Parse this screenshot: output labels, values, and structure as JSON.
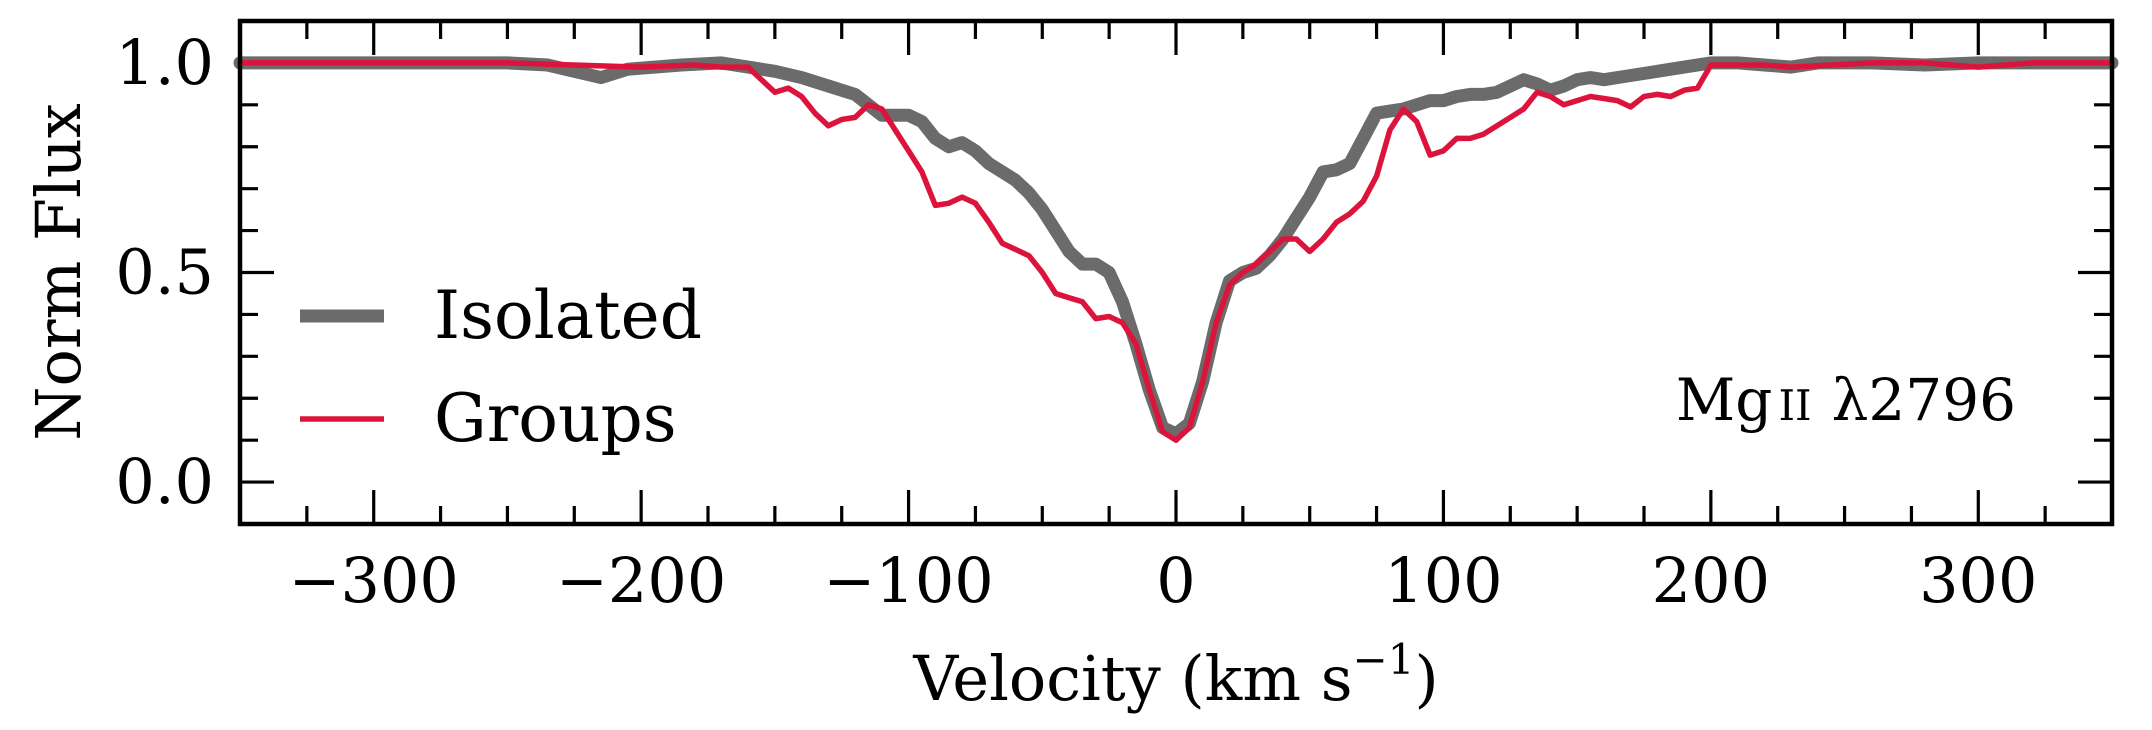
{
  "chart_data": {
    "type": "line",
    "xlabel": "Velocity (km s",
    "xlabel_sup": "−1",
    "xlabel_close": ")",
    "ylabel": "Norm Flux",
    "xlim": [
      -350,
      350
    ],
    "ylim": [
      -0.1,
      1.1
    ],
    "x_ticks_major": [
      -300,
      -200,
      -100,
      0,
      100,
      200,
      300
    ],
    "x_tick_labels": [
      "−300",
      "−200",
      "−100",
      "0",
      "100",
      "200",
      "300"
    ],
    "y_ticks_major": [
      0.0,
      0.5,
      1.0
    ],
    "y_tick_labels": [
      "0.0",
      "0.5",
      "1.0"
    ],
    "grid": false,
    "legend_placement": "center-left",
    "annotation": {
      "text": "Mg II λ2796",
      "ion": "Mg",
      "ion_stage": "II",
      "wavelength": "λ2796"
    },
    "series": [
      {
        "name": "Isolated",
        "color": "#6b6b6b",
        "x": [
          -350,
          -300,
          -250,
          -235,
          -225,
          -215,
          -205,
          -195,
          -185,
          -170,
          -160,
          -150,
          -140,
          -130,
          -120,
          -110,
          -100,
          -95,
          -90,
          -85,
          -80,
          -75,
          -70,
          -65,
          -60,
          -55,
          -50,
          -45,
          -40,
          -35,
          -30,
          -25,
          -20,
          -15,
          -10,
          -5,
          0,
          5,
          10,
          15,
          20,
          25,
          30,
          35,
          40,
          45,
          50,
          55,
          60,
          65,
          70,
          75,
          80,
          85,
          90,
          95,
          100,
          105,
          110,
          115,
          120,
          125,
          130,
          135,
          140,
          145,
          150,
          155,
          160,
          170,
          180,
          190,
          200,
          210,
          220,
          230,
          240,
          260,
          280,
          300,
          320,
          350
        ],
        "y": [
          1.0,
          1.0,
          1.0,
          0.995,
          0.98,
          0.965,
          0.985,
          0.99,
          0.995,
          1.0,
          0.99,
          0.98,
          0.965,
          0.945,
          0.925,
          0.875,
          0.875,
          0.86,
          0.82,
          0.8,
          0.81,
          0.79,
          0.76,
          0.74,
          0.72,
          0.69,
          0.65,
          0.6,
          0.55,
          0.52,
          0.52,
          0.5,
          0.43,
          0.33,
          0.22,
          0.13,
          0.115,
          0.14,
          0.24,
          0.38,
          0.48,
          0.5,
          0.51,
          0.54,
          0.58,
          0.63,
          0.68,
          0.74,
          0.745,
          0.76,
          0.82,
          0.88,
          0.885,
          0.89,
          0.9,
          0.91,
          0.91,
          0.92,
          0.925,
          0.925,
          0.93,
          0.945,
          0.96,
          0.95,
          0.935,
          0.945,
          0.96,
          0.965,
          0.96,
          0.97,
          0.98,
          0.99,
          1.0,
          1.0,
          0.995,
          0.99,
          1.0,
          1.0,
          0.995,
          1.0,
          1.0,
          1.0
        ]
      },
      {
        "name": "Groups",
        "color": "#dc143c",
        "x": [
          -350,
          -300,
          -250,
          -200,
          -180,
          -170,
          -160,
          -155,
          -150,
          -145,
          -140,
          -135,
          -130,
          -125,
          -120,
          -115,
          -110,
          -105,
          -100,
          -95,
          -90,
          -85,
          -80,
          -75,
          -70,
          -65,
          -60,
          -55,
          -50,
          -45,
          -40,
          -35,
          -30,
          -25,
          -20,
          -15,
          -10,
          -5,
          0,
          5,
          10,
          15,
          20,
          25,
          30,
          35,
          40,
          45,
          50,
          55,
          60,
          65,
          70,
          75,
          80,
          85,
          90,
          95,
          100,
          105,
          110,
          115,
          120,
          125,
          130,
          135,
          140,
          145,
          150,
          155,
          160,
          165,
          170,
          175,
          180,
          185,
          190,
          195,
          200,
          210,
          220,
          230,
          260,
          280,
          300,
          320,
          350
        ],
        "y": [
          1.0,
          1.0,
          1.0,
          0.99,
          0.995,
          0.99,
          0.99,
          0.96,
          0.93,
          0.94,
          0.92,
          0.88,
          0.85,
          0.865,
          0.87,
          0.9,
          0.89,
          0.84,
          0.79,
          0.74,
          0.66,
          0.665,
          0.68,
          0.665,
          0.62,
          0.57,
          0.555,
          0.54,
          0.5,
          0.45,
          0.44,
          0.43,
          0.39,
          0.395,
          0.38,
          0.33,
          0.22,
          0.12,
          0.1,
          0.13,
          0.24,
          0.38,
          0.47,
          0.5,
          0.52,
          0.55,
          0.58,
          0.58,
          0.55,
          0.58,
          0.62,
          0.64,
          0.67,
          0.73,
          0.84,
          0.89,
          0.86,
          0.78,
          0.79,
          0.82,
          0.82,
          0.83,
          0.85,
          0.87,
          0.89,
          0.93,
          0.92,
          0.9,
          0.91,
          0.92,
          0.915,
          0.91,
          0.895,
          0.92,
          0.925,
          0.92,
          0.935,
          0.94,
          0.995,
          0.995,
          0.995,
          0.99,
          1.0,
          1.0,
          0.99,
          1.0,
          1.0
        ]
      }
    ]
  }
}
